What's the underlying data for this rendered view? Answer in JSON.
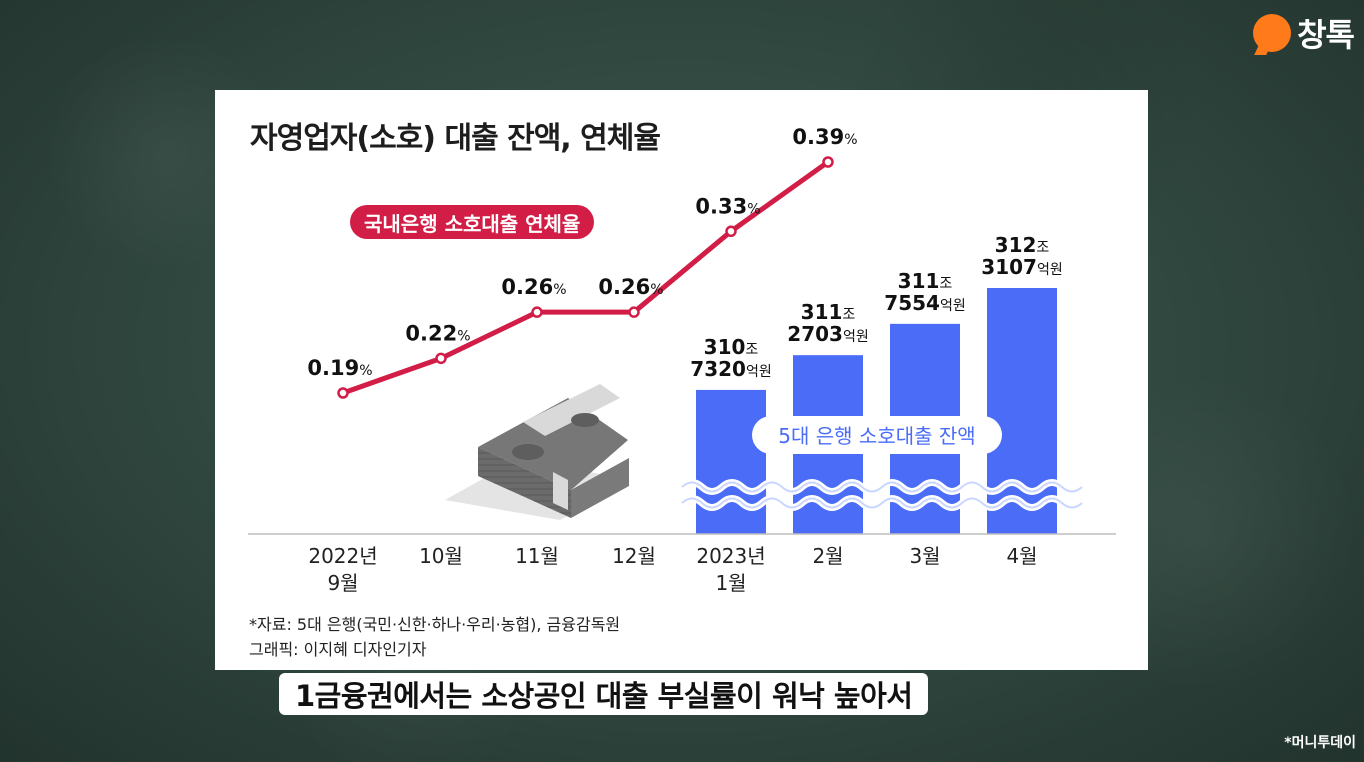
{
  "logo": {
    "text": "창톡"
  },
  "chart_data": {
    "type": "bar",
    "title": "자영업자(소호) 대출 잔액, 연체율",
    "categories": [
      [
        "2022년",
        "9월"
      ],
      [
        "10월"
      ],
      [
        "11월"
      ],
      [
        "12월"
      ],
      [
        "2023년",
        "1월"
      ],
      [
        "2월"
      ],
      [
        "3월"
      ],
      [
        "4월"
      ]
    ],
    "line_series": {
      "name": "국내은행 소호대출 연체율",
      "color": "#d21d47",
      "values": [
        0.19,
        0.22,
        0.26,
        0.26,
        0.33,
        0.39
      ],
      "labels": [
        "0.19%",
        "0.22%",
        "0.26%",
        "0.26%",
        "0.33%",
        "0.39%"
      ]
    },
    "bar_series": {
      "name": "5대 은행 소호대출 잔액",
      "color": "#4a6cf7",
      "values_eok": [
        3107320,
        3112703,
        3117554,
        3123107
      ],
      "labels": [
        [
          "310조",
          "7320억원"
        ],
        [
          "311조",
          "2703억원"
        ],
        [
          "311조",
          "7554억원"
        ],
        [
          "312조",
          "3107억원"
        ]
      ]
    },
    "source": "*자료: 5대 은행(국민·신한·하나·우리·농협), 금융감독원",
    "graphic": "그래픽: 이지혜 디자인기자"
  },
  "caption": "1금융권에서는 소상공인 대출 부실률이 워낙 높아서",
  "credit": "*머니투데이"
}
